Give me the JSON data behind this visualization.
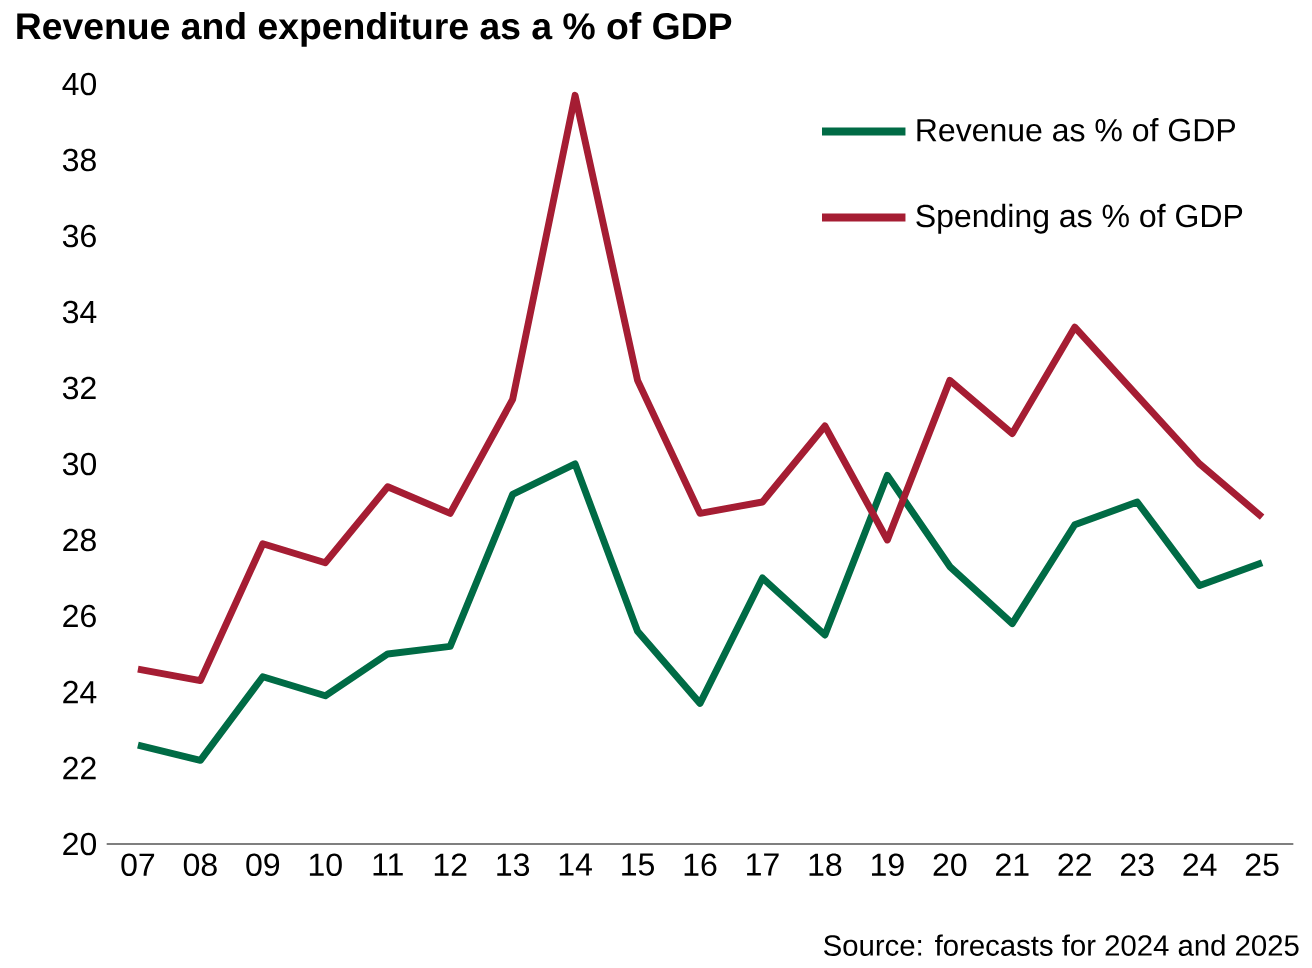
{
  "chart_data": {
    "type": "line",
    "title": "Revenue and expenditure as a % of GDP",
    "categories": [
      "07",
      "08",
      "09",
      "10",
      "11",
      "12",
      "13",
      "14",
      "15",
      "16",
      "17",
      "18",
      "19",
      "20",
      "21",
      "22",
      "23",
      "24",
      "25"
    ],
    "series": [
      {
        "name": "Revenue as % of GDP",
        "color": "#006b45",
        "values": [
          22.6,
          22.2,
          24.4,
          23.9,
          25.0,
          25.2,
          29.2,
          30.0,
          25.6,
          23.7,
          27.0,
          25.5,
          29.7,
          27.3,
          25.8,
          28.4,
          29.0,
          26.8,
          27.4
        ]
      },
      {
        "name": "Spending as % of GDP",
        "color": "#a51d33",
        "values": [
          24.6,
          24.3,
          27.9,
          27.4,
          29.4,
          28.7,
          31.7,
          39.7,
          32.2,
          28.7,
          29.0,
          31.0,
          28.0,
          32.2,
          30.8,
          33.6,
          31.8,
          30.0,
          28.6
        ]
      }
    ],
    "ylim": [
      20,
      40
    ],
    "yticks": [
      20,
      22,
      24,
      26,
      28,
      30,
      32,
      34,
      36,
      38,
      40
    ],
    "grid": false,
    "legend": "top right",
    "marker": "none",
    "line_style": "solid",
    "annotations": [
      "Source: forecasts for 2024 and 2025"
    ]
  }
}
